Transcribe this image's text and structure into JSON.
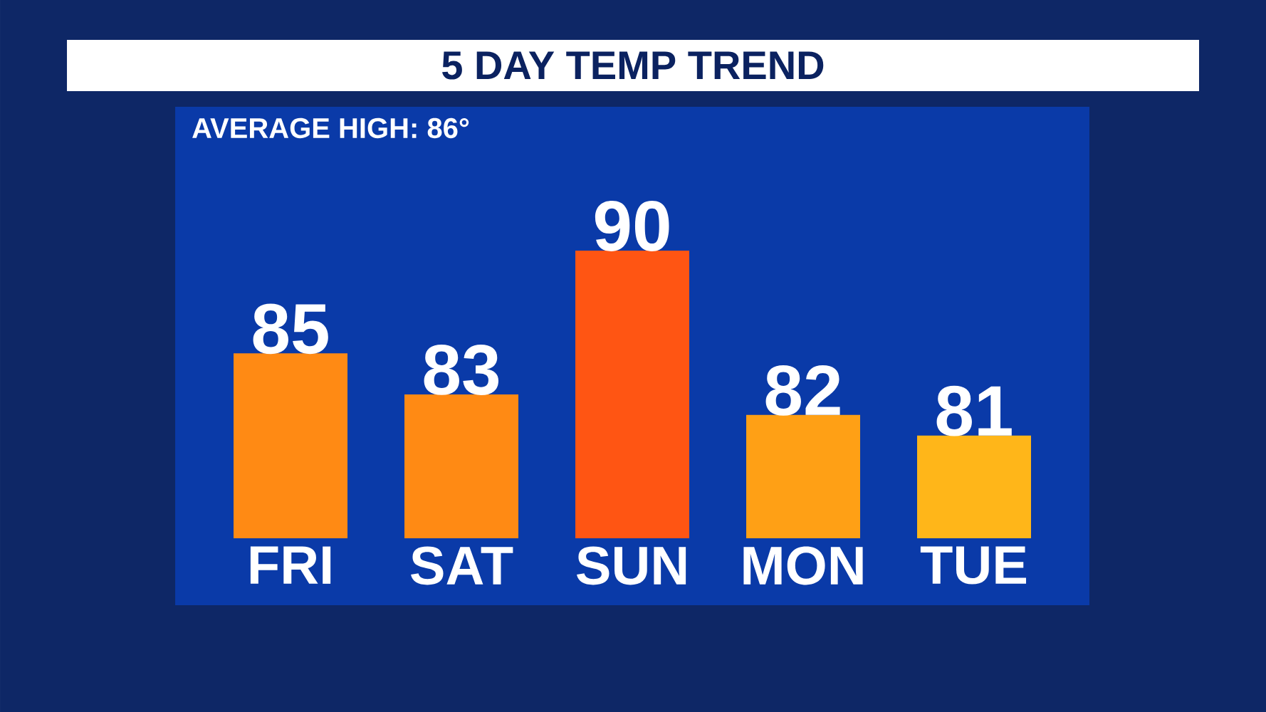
{
  "chart_data": {
    "type": "bar",
    "title": "5 DAY TEMP TREND",
    "annotations": [
      "AVERAGE HIGH: 86°"
    ],
    "categories": [
      "FRI",
      "SAT",
      "SUN",
      "MON",
      "TUE"
    ],
    "values": [
      85,
      83,
      90,
      82,
      81
    ],
    "colors": [
      "#ff8a14",
      "#ff8a14",
      "#ff5513",
      "#ffa015",
      "#ffb619"
    ],
    "ylim": [
      76,
      97
    ],
    "data_labels": true,
    "tick_labels": "x"
  }
}
